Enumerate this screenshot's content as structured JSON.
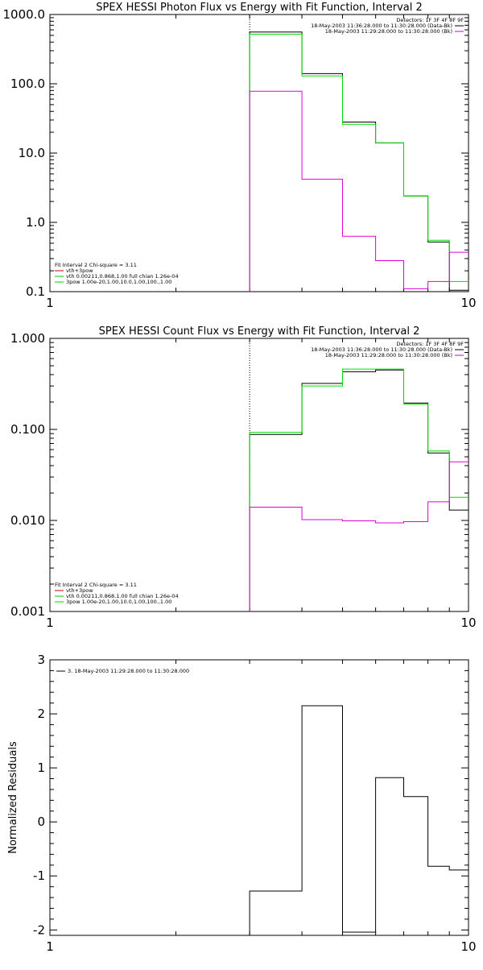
{
  "chart_data": [
    {
      "type": "line",
      "title": "SPEX HESSI Photon Flux vs Energy with Fit Function, Interval 2",
      "xlabel": "",
      "ylabel": "",
      "xscale": "log",
      "yscale": "log",
      "xlim": [
        1,
        10
      ],
      "ylim": [
        0.1,
        1000
      ],
      "x_ticks": [
        "1",
        "10"
      ],
      "y_ticks": [
        "0.1",
        "1.0",
        "10.0",
        "100.0",
        "1000.0"
      ],
      "fit_start": 3,
      "legend_top": {
        "detectors": "Detectors: 1F 3F 4F 8F 9F",
        "entries": [
          {
            "text": "18-May-2003 11:36:28.000 to 11:30:28.000 (Data-Bk)",
            "color": "#000000"
          },
          {
            "text": "18-May-2003 11:29:28.000 to 11:30:28.000 (Bk)",
            "color": "#cc00cc"
          }
        ]
      },
      "legend_bottom": {
        "header": "Fit Interval 2   Chi-square = 3.11",
        "entries": [
          {
            "text": "vth+3pow",
            "color": "#cc0000"
          },
          {
            "text": "vth 0.00211,0.868,1.00   full chian 1.26e-04",
            "color": "#00cc00"
          },
          {
            "text": "3pow 1.00e-20,1.00,10.0,1.00,100.,1.00",
            "color": "#00cc00"
          }
        ]
      },
      "series": [
        {
          "color": "#000000",
          "edges": [
            3,
            4,
            5,
            6,
            7,
            8,
            9,
            10
          ],
          "values": [
            560,
            140,
            28,
            14,
            2.4,
            0.52,
            0.105
          ]
        },
        {
          "color": "#00dd00",
          "edges": [
            3,
            4,
            5,
            6,
            7,
            8,
            9,
            10
          ],
          "values": [
            520,
            130,
            26,
            14,
            2.4,
            0.55,
            0.14
          ]
        },
        {
          "color": "#dd00dd",
          "edges": [
            3,
            4,
            5,
            6,
            7,
            8,
            9,
            10
          ],
          "values": [
            78,
            4.2,
            0.63,
            0.28,
            0.11,
            0.14,
            0.37
          ]
        }
      ]
    },
    {
      "type": "line",
      "title": "SPEX HESSI Count Flux vs Energy with Fit Function, Interval 2",
      "xlabel": "",
      "ylabel": "",
      "xscale": "log",
      "yscale": "log",
      "xlim": [
        1,
        10
      ],
      "ylim": [
        0.001,
        1
      ],
      "x_ticks": [
        "1",
        "10"
      ],
      "y_ticks": [
        "0.001",
        "0.010",
        "0.100",
        "1.000"
      ],
      "fit_start": 3,
      "legend_top": {
        "detectors": "Detectors: 1F 3F 4F 8F 9F",
        "entries": [
          {
            "text": "18-May-2003 11:36:28.000 to 11:30:28.000 (Data-Bk)",
            "color": "#000000"
          },
          {
            "text": "18-May-2003 11:29:28.000 to 11:30:28.000 (Bk)",
            "color": "#cc00cc"
          }
        ]
      },
      "legend_bottom": {
        "header": "Fit Interval 2   Chi-square = 3.11",
        "entries": [
          {
            "text": "vth+3pow",
            "color": "#cc0000"
          },
          {
            "text": "vth 0.00211,0.868,1.00   full chian 1.26e-04",
            "color": "#00cc00"
          },
          {
            "text": "3pow 1.00e-20,1.00,10.0,1.00,100.,1.00",
            "color": "#00cc00"
          }
        ]
      },
      "series": [
        {
          "color": "#000000",
          "edges": [
            3,
            4,
            5,
            6,
            7,
            8,
            9,
            10
          ],
          "values": [
            0.088,
            0.32,
            0.43,
            0.45,
            0.195,
            0.055,
            0.013
          ]
        },
        {
          "color": "#00dd00",
          "edges": [
            3,
            4,
            5,
            6,
            7,
            8,
            9,
            10
          ],
          "values": [
            0.093,
            0.3,
            0.46,
            0.46,
            0.19,
            0.058,
            0.018
          ]
        },
        {
          "color": "#dd00dd",
          "edges": [
            3,
            4,
            5,
            6,
            7,
            8,
            9,
            10
          ],
          "values": [
            0.014,
            0.0102,
            0.0099,
            0.0094,
            0.0097,
            0.016,
            0.044
          ]
        }
      ]
    },
    {
      "type": "line",
      "title": "",
      "xlabel": "",
      "ylabel": "Normalized Residuals",
      "xscale": "log",
      "yscale": "linear",
      "xlim": [
        1,
        10
      ],
      "ylim": [
        -2.1,
        3
      ],
      "x_ticks": [
        "1",
        "10"
      ],
      "y_ticks": [
        "-2",
        "-1",
        "0",
        "1",
        "2",
        "3"
      ],
      "legend": {
        "entries": [
          {
            "text": "3. 18-May-2003 11:29:28.000 to 11:30:28.000",
            "color": "#000000"
          }
        ]
      },
      "series": [
        {
          "color": "#000000",
          "edges": [
            3,
            4,
            5,
            6,
            7,
            8,
            9,
            10
          ],
          "values": [
            -1.28,
            2.15,
            -2.04,
            0.82,
            0.47,
            -0.82,
            -0.89
          ]
        }
      ]
    }
  ]
}
